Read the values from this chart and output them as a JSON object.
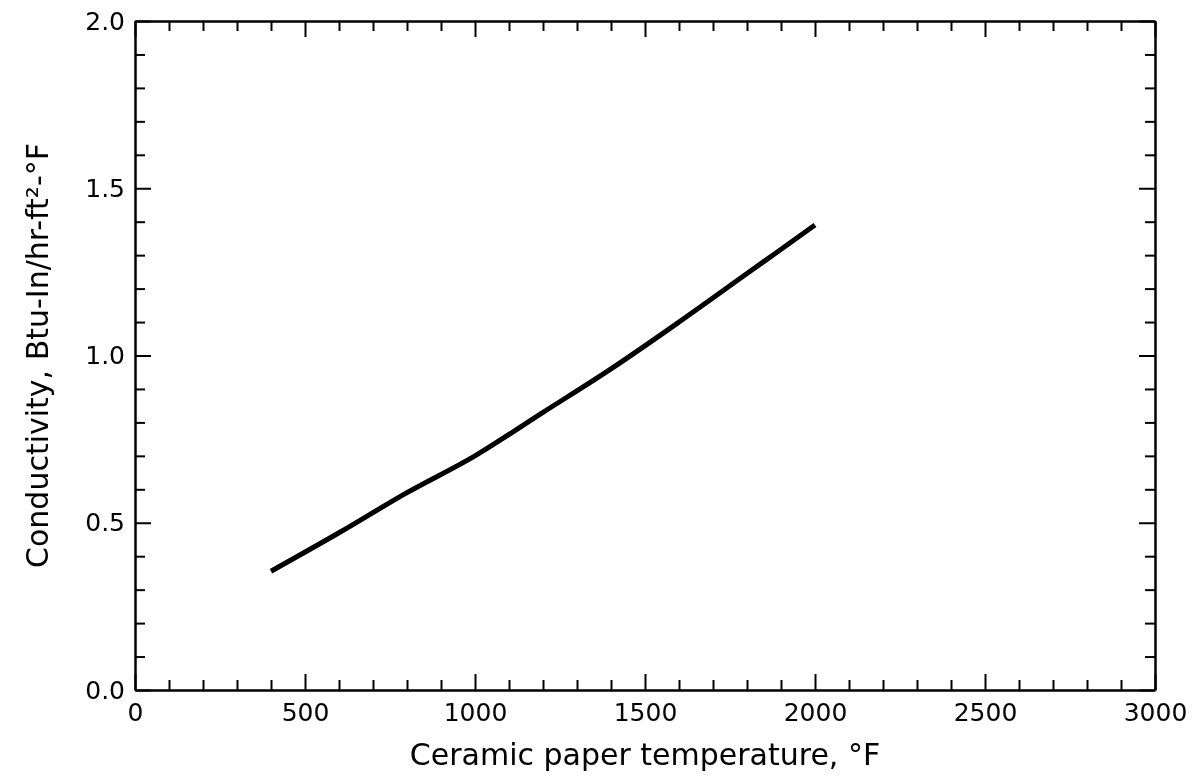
{
  "chart_data": {
    "type": "line",
    "xlabel": "Ceramic paper temperature, °F",
    "ylabel": "Conductivity,  Btu-In/hr-ft²-°F",
    "x": [
      400,
      600,
      800,
      1000,
      1200,
      1400,
      1600,
      1800,
      2000
    ],
    "series": [
      {
        "color": "#000000",
        "values": [
          0.355,
          0.47,
          0.59,
          0.7,
          0.83,
          0.96,
          1.1,
          1.245,
          1.39
        ]
      }
    ],
    "xlim": [
      0,
      3000
    ],
    "xticks": [
      0,
      {
        "value": 100,
        "label": null
      },
      {
        "value": 200,
        "label": null
      },
      {
        "value": 300,
        "label": null
      },
      {
        "value": 400,
        "label": null
      },
      500,
      {
        "value": 600,
        "label": null
      },
      {
        "value": 700,
        "label": null
      },
      {
        "value": 800,
        "label": null
      },
      {
        "value": 900,
        "label": null
      },
      1000,
      {
        "value": 1100,
        "label": null
      },
      {
        "value": 1200,
        "label": null
      },
      {
        "value": 1300,
        "label": null
      },
      {
        "value": 1400,
        "label": null
      },
      1500,
      {
        "value": 1600,
        "label": null
      },
      {
        "value": 1700,
        "label": null
      },
      {
        "value": 1800,
        "label": null
      },
      {
        "value": 1900,
        "label": null
      },
      2000,
      {
        "value": 2100,
        "label": null
      },
      {
        "value": 2200,
        "label": null
      },
      {
        "value": 2300,
        "label": null
      },
      {
        "value": 2400,
        "label": null
      },
      2500,
      {
        "value": 2600,
        "label": null
      },
      {
        "value": 2700,
        "label": null
      },
      {
        "value": 2800,
        "label": null
      },
      {
        "value": 2900,
        "label": null
      },
      3000
    ],
    "ylim": [
      0,
      2
    ],
    "yticks": [
      {
        "value": 0,
        "label": "0.0"
      },
      {
        "value": 0.1,
        "label": null
      },
      {
        "value": 0.2,
        "label": null
      },
      {
        "value": 0.3,
        "label": null
      },
      {
        "value": 0.4,
        "label": null
      },
      {
        "value": 0.5,
        "label": "0.5"
      },
      {
        "value": 0.6,
        "label": null
      },
      {
        "value": 0.7,
        "label": null
      },
      {
        "value": 0.8,
        "label": null
      },
      {
        "value": 0.9,
        "label": null
      },
      {
        "value": 1,
        "label": "1.0"
      },
      {
        "value": 1.1,
        "label": null
      },
      {
        "value": 1.2,
        "label": null
      },
      {
        "value": 1.3,
        "label": null
      },
      {
        "value": 1.4,
        "label": null
      },
      {
        "value": 1.5,
        "label": "1.5"
      },
      {
        "value": 1.6,
        "label": null
      },
      {
        "value": 1.7,
        "label": null
      },
      {
        "value": 1.8,
        "label": null
      },
      {
        "value": 1.9,
        "label": null
      },
      {
        "value": 2,
        "label": "2.0"
      }
    ],
    "grid": false,
    "marker": "none",
    "line_style": "solid"
  }
}
